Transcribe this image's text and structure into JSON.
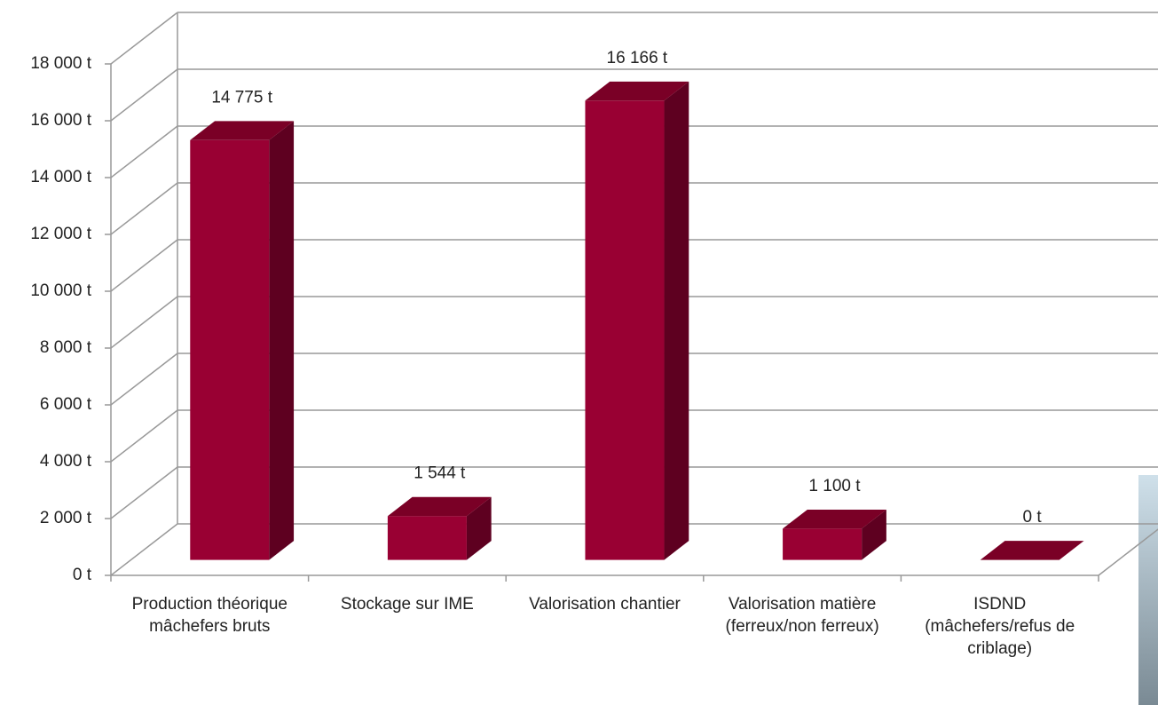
{
  "chart_data": {
    "type": "bar3d",
    "categories": [
      "Production théorique mâchefers bruts",
      "Stockage sur IME",
      "Valorisation chantier",
      "Valorisation matière (ferreux/non ferreux)",
      "ISDND (mâchefers/refus de criblage)"
    ],
    "values": [
      14775,
      1544,
      16166,
      1100,
      0
    ],
    "value_labels": [
      "14 775 t",
      "1 544 t",
      "16 166 t",
      "1 100 t",
      "0 t"
    ],
    "color": "#990033",
    "ylim": [
      0,
      18000
    ],
    "yticks": [
      {
        "value": 0,
        "label": "0 t"
      },
      {
        "value": 2000,
        "label": "2 000 t"
      },
      {
        "value": 4000,
        "label": "4 000 t"
      },
      {
        "value": 6000,
        "label": "6 000 t"
      },
      {
        "value": 8000,
        "label": "8 000 t"
      },
      {
        "value": 10000,
        "label": "10 000 t"
      },
      {
        "value": 12000,
        "label": "12 000 t"
      },
      {
        "value": 14000,
        "label": "14 000 t"
      },
      {
        "value": 16000,
        "label": "16 000 t"
      },
      {
        "value": 18000,
        "label": "18 000 t"
      }
    ],
    "grid": true
  }
}
